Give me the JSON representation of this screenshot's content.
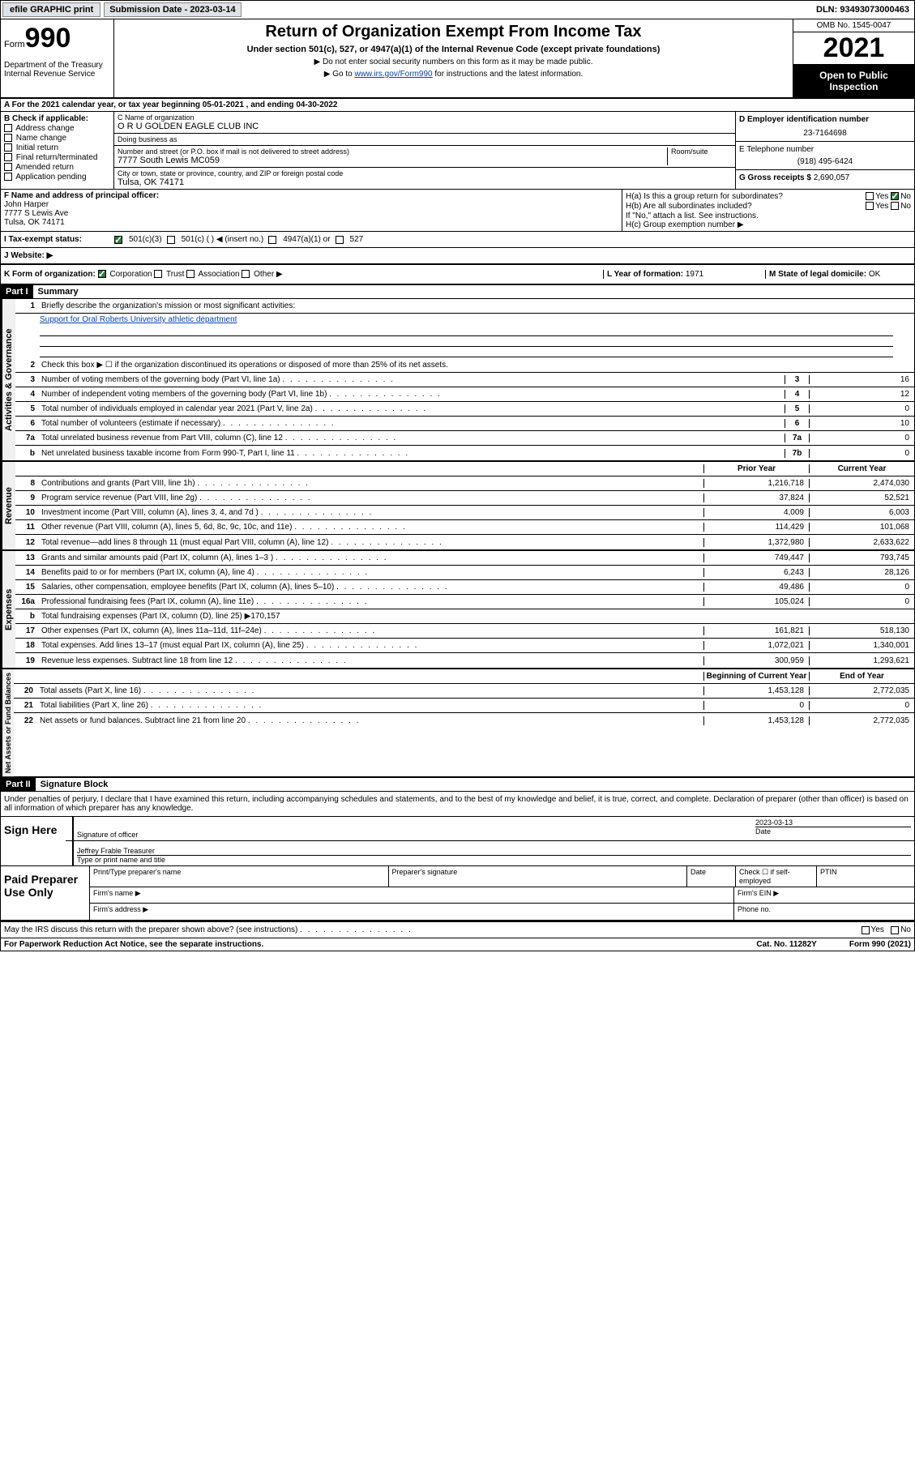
{
  "top_bar": {
    "efile_btn": "efile GRAPHIC print",
    "submission_date": "Submission Date - 2023-03-14",
    "dln": "DLN: 93493073000463"
  },
  "header": {
    "form_label": "Form",
    "form_number": "990",
    "title": "Return of Organization Exempt From Income Tax",
    "subtitle": "Under section 501(c), 527, or 4947(a)(1) of the Internal Revenue Code (except private foundations)",
    "note1": "▶ Do not enter social security numbers on this form as it may be made public.",
    "note2_prefix": "▶ Go to ",
    "note2_link": "www.irs.gov/Form990",
    "note2_suffix": " for instructions and the latest information.",
    "dept": "Department of the Treasury\nInternal Revenue Service",
    "omb": "OMB No. 1545-0047",
    "year": "2021",
    "open_public": "Open to Public Inspection"
  },
  "row_a": "A For the 2021 calendar year, or tax year beginning 05-01-2021    , and ending 04-30-2022",
  "section_b": {
    "header": "B Check if applicable:",
    "items": [
      "Address change",
      "Name change",
      "Initial return",
      "Final return/terminated",
      "Amended return",
      "Application pending"
    ]
  },
  "section_c": {
    "name_label": "C Name of organization",
    "name": "O R U GOLDEN EAGLE CLUB INC",
    "dba_label": "Doing business as",
    "dba": "",
    "addr_label": "Number and street (or P.O. box if mail is not delivered to street address)",
    "room_label": "Room/suite",
    "addr": "7777 South Lewis MC059",
    "city_label": "City or town, state or province, country, and ZIP or foreign postal code",
    "city": "Tulsa, OK  74171"
  },
  "section_d": {
    "ein_label": "D Employer identification number",
    "ein": "23-7164698",
    "phone_label": "E Telephone number",
    "phone": "(918) 495-6424",
    "gross_label": "G Gross receipts $",
    "gross": "2,690,057"
  },
  "section_f": {
    "label": "F Name and address of principal officer:",
    "name": "John Harper",
    "addr1": "7777 S Lewis Ave",
    "addr2": "Tulsa, OK  74171"
  },
  "section_h": {
    "ha": "H(a)  Is this a group return for subordinates?",
    "hb": "H(b)  Are all subordinates included?",
    "hb_note": "If \"No,\" attach a list. See instructions.",
    "hc": "H(c)  Group exemption number ▶",
    "yes": "Yes",
    "no": "No"
  },
  "row_i": {
    "label": "I  Tax-exempt status:",
    "opt1": "501(c)(3)",
    "opt2": "501(c) (  ) ◀ (insert no.)",
    "opt3": "4947(a)(1) or",
    "opt4": "527"
  },
  "row_j": "J  Website: ▶",
  "row_k": {
    "label": "K Form of organization:",
    "opts": [
      "Corporation",
      "Trust",
      "Association",
      "Other ▶"
    ],
    "year_label": "L Year of formation:",
    "year": "1971",
    "state_label": "M State of legal domicile:",
    "state": "OK"
  },
  "part1": {
    "hdr": "Part I",
    "title": "Summary",
    "line1": "Briefly describe the organization's mission or most significant activities:",
    "mission": "Support for Oral Roberts University athletic department",
    "line2": "Check this box ▶ ☐  if the organization discontinued its operations or disposed of more than 25% of its net assets.",
    "governance_label": "Activities & Governance",
    "revenue_label": "Revenue",
    "expenses_label": "Expenses",
    "netassets_label": "Net Assets or Fund Balances",
    "rows_gov": [
      {
        "num": "3",
        "text": "Number of voting members of the governing body (Part VI, line 1a)",
        "cell": "3",
        "val": "16"
      },
      {
        "num": "4",
        "text": "Number of independent voting members of the governing body (Part VI, line 1b)",
        "cell": "4",
        "val": "12"
      },
      {
        "num": "5",
        "text": "Total number of individuals employed in calendar year 2021 (Part V, line 2a)",
        "cell": "5",
        "val": "0"
      },
      {
        "num": "6",
        "text": "Total number of volunteers (estimate if necessary)",
        "cell": "6",
        "val": "10"
      },
      {
        "num": "7a",
        "text": "Total unrelated business revenue from Part VIII, column (C), line 12",
        "cell": "7a",
        "val": "0"
      },
      {
        "num": "b",
        "text": "Net unrelated business taxable income from Form 990-T, Part I, line 11",
        "cell": "7b",
        "val": "0"
      }
    ],
    "col_hdrs": {
      "prior": "Prior Year",
      "current": "Current Year",
      "begin": "Beginning of Current Year",
      "end": "End of Year"
    },
    "rows_rev": [
      {
        "num": "8",
        "text": "Contributions and grants (Part VIII, line 1h)",
        "prior": "1,216,718",
        "current": "2,474,030"
      },
      {
        "num": "9",
        "text": "Program service revenue (Part VIII, line 2g)",
        "prior": "37,824",
        "current": "52,521"
      },
      {
        "num": "10",
        "text": "Investment income (Part VIII, column (A), lines 3, 4, and 7d )",
        "prior": "4,009",
        "current": "6,003"
      },
      {
        "num": "11",
        "text": "Other revenue (Part VIII, column (A), lines 5, 6d, 8c, 9c, 10c, and 11e)",
        "prior": "114,429",
        "current": "101,068"
      },
      {
        "num": "12",
        "text": "Total revenue—add lines 8 through 11 (must equal Part VIII, column (A), line 12)",
        "prior": "1,372,980",
        "current": "2,633,622"
      }
    ],
    "rows_exp": [
      {
        "num": "13",
        "text": "Grants and similar amounts paid (Part IX, column (A), lines 1–3 )",
        "prior": "749,447",
        "current": "793,745"
      },
      {
        "num": "14",
        "text": "Benefits paid to or for members (Part IX, column (A), line 4)",
        "prior": "6,243",
        "current": "28,126"
      },
      {
        "num": "15",
        "text": "Salaries, other compensation, employee benefits (Part IX, column (A), lines 5–10)",
        "prior": "49,486",
        "current": "0"
      },
      {
        "num": "16a",
        "text": "Professional fundraising fees (Part IX, column (A), line 11e)",
        "prior": "105,024",
        "current": "0"
      },
      {
        "num": "b",
        "text": "Total fundraising expenses (Part IX, column (D), line 25) ▶170,157",
        "prior": "",
        "current": "",
        "shaded": true
      },
      {
        "num": "17",
        "text": "Other expenses (Part IX, column (A), lines 11a–11d, 11f–24e)",
        "prior": "161,821",
        "current": "518,130"
      },
      {
        "num": "18",
        "text": "Total expenses. Add lines 13–17 (must equal Part IX, column (A), line 25)",
        "prior": "1,072,021",
        "current": "1,340,001"
      },
      {
        "num": "19",
        "text": "Revenue less expenses. Subtract line 18 from line 12",
        "prior": "300,959",
        "current": "1,293,621"
      }
    ],
    "rows_net": [
      {
        "num": "20",
        "text": "Total assets (Part X, line 16)",
        "prior": "1,453,128",
        "current": "2,772,035"
      },
      {
        "num": "21",
        "text": "Total liabilities (Part X, line 26)",
        "prior": "0",
        "current": "0"
      },
      {
        "num": "22",
        "text": "Net assets or fund balances. Subtract line 21 from line 20",
        "prior": "1,453,128",
        "current": "2,772,035"
      }
    ]
  },
  "part2": {
    "hdr": "Part II",
    "title": "Signature Block",
    "declaration": "Under penalties of perjury, I declare that I have examined this return, including accompanying schedules and statements, and to the best of my knowledge and belief, it is true, correct, and complete. Declaration of preparer (other than officer) is based on all information of which preparer has any knowledge.",
    "sign_here": "Sign Here",
    "sig_officer": "Signature of officer",
    "date": "Date",
    "date_val": "2023-03-13",
    "officer_name": "Jeffrey Frable  Treasurer",
    "type_name": "Type or print name and title",
    "paid_prep": "Paid Preparer Use Only",
    "prep_name": "Print/Type preparer's name",
    "prep_sig": "Preparer's signature",
    "prep_date": "Date",
    "check_if": "Check ☐ if self-employed",
    "ptin": "PTIN",
    "firm_name": "Firm's name  ▶",
    "firm_ein": "Firm's EIN ▶",
    "firm_addr": "Firm's address ▶",
    "phone": "Phone no."
  },
  "footer": {
    "discuss": "May the IRS discuss this return with the preparer shown above? (see instructions)",
    "yes": "Yes",
    "no": "No",
    "paperwork": "For Paperwork Reduction Act Notice, see the separate instructions.",
    "cat": "Cat. No. 11282Y",
    "form": "Form 990 (2021)"
  }
}
